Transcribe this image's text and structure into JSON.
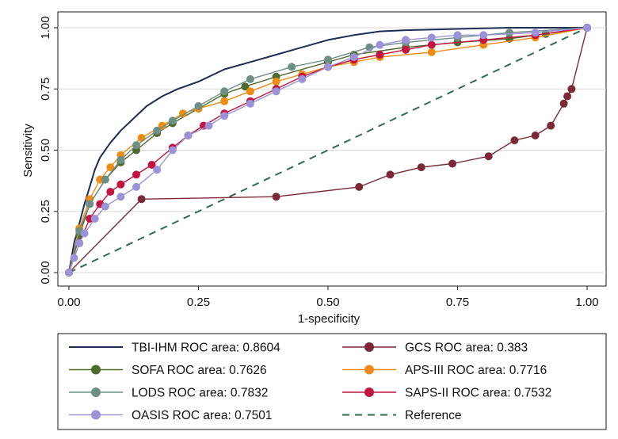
{
  "chart_data": {
    "type": "line",
    "title": "",
    "xlabel": "1-specificity",
    "ylabel": "Sensitivity",
    "xlim": [
      0,
      1
    ],
    "ylim": [
      0,
      1
    ],
    "xticks": [
      "0.00",
      "0.25",
      "0.50",
      "0.75",
      "1.00"
    ],
    "yticks": [
      "0.00",
      "0.25",
      "0.50",
      "0.75",
      "1.00"
    ],
    "grid": "horizontal",
    "legend_position": "bottom",
    "series": [
      {
        "name": "TBI-IHM ROC area: 0.8604",
        "color": "#1c2e55",
        "markers": false,
        "dash": "",
        "points": [
          [
            0,
            0
          ],
          [
            0.01,
            0.12
          ],
          [
            0.02,
            0.2
          ],
          [
            0.03,
            0.28
          ],
          [
            0.04,
            0.35
          ],
          [
            0.05,
            0.42
          ],
          [
            0.06,
            0.47
          ],
          [
            0.08,
            0.53
          ],
          [
            0.1,
            0.58
          ],
          [
            0.12,
            0.62
          ],
          [
            0.15,
            0.68
          ],
          [
            0.18,
            0.72
          ],
          [
            0.21,
            0.75
          ],
          [
            0.25,
            0.78
          ],
          [
            0.3,
            0.83
          ],
          [
            0.35,
            0.86
          ],
          [
            0.4,
            0.89
          ],
          [
            0.45,
            0.92
          ],
          [
            0.5,
            0.95
          ],
          [
            0.55,
            0.97
          ],
          [
            0.6,
            0.985
          ],
          [
            0.65,
            0.99
          ],
          [
            0.75,
            0.995
          ],
          [
            0.85,
            1.0
          ],
          [
            1,
            1
          ]
        ]
      },
      {
        "name": "GCS ROC area: 0.383",
        "color": "#7b2934",
        "markers": true,
        "dash": "",
        "points": [
          [
            0,
            0
          ],
          [
            0.14,
            0.3
          ],
          [
            0.4,
            0.31
          ],
          [
            0.56,
            0.35
          ],
          [
            0.62,
            0.4
          ],
          [
            0.68,
            0.43
          ],
          [
            0.74,
            0.445
          ],
          [
            0.81,
            0.475
          ],
          [
            0.86,
            0.54
          ],
          [
            0.9,
            0.56
          ],
          [
            0.93,
            0.6
          ],
          [
            0.955,
            0.69
          ],
          [
            0.962,
            0.72
          ],
          [
            0.97,
            0.75
          ],
          [
            1,
            1
          ]
        ]
      },
      {
        "name": "SOFA ROC area: 0.7626",
        "color": "#4e6b2c",
        "markers": true,
        "dash": "",
        "points": [
          [
            0,
            0
          ],
          [
            0.02,
            0.15
          ],
          [
            0.04,
            0.28
          ],
          [
            0.07,
            0.38
          ],
          [
            0.1,
            0.45
          ],
          [
            0.13,
            0.5
          ],
          [
            0.17,
            0.57
          ],
          [
            0.2,
            0.61
          ],
          [
            0.25,
            0.67
          ],
          [
            0.3,
            0.73
          ],
          [
            0.34,
            0.76
          ],
          [
            0.4,
            0.8
          ],
          [
            0.5,
            0.86
          ],
          [
            0.55,
            0.89
          ],
          [
            0.65,
            0.92
          ],
          [
            0.75,
            0.94
          ],
          [
            0.85,
            0.955
          ],
          [
            0.92,
            0.975
          ],
          [
            1,
            1
          ]
        ]
      },
      {
        "name": "APS-III ROC area: 0.7716",
        "color": "#ef8c16",
        "markers": true,
        "dash": "",
        "points": [
          [
            0,
            0
          ],
          [
            0.02,
            0.18
          ],
          [
            0.04,
            0.3
          ],
          [
            0.06,
            0.38
          ],
          [
            0.08,
            0.43
          ],
          [
            0.1,
            0.48
          ],
          [
            0.14,
            0.55
          ],
          [
            0.18,
            0.6
          ],
          [
            0.22,
            0.65
          ],
          [
            0.25,
            0.67
          ],
          [
            0.3,
            0.7
          ],
          [
            0.35,
            0.74
          ],
          [
            0.4,
            0.78
          ],
          [
            0.45,
            0.81
          ],
          [
            0.5,
            0.84
          ],
          [
            0.55,
            0.86
          ],
          [
            0.6,
            0.88
          ],
          [
            0.7,
            0.9
          ],
          [
            0.8,
            0.93
          ],
          [
            0.9,
            0.96
          ],
          [
            1,
            1
          ]
        ]
      },
      {
        "name": "LODS ROC area: 0.7832",
        "color": "#6e8f86",
        "markers": true,
        "dash": "",
        "points": [
          [
            0,
            0
          ],
          [
            0.02,
            0.17
          ],
          [
            0.04,
            0.28
          ],
          [
            0.07,
            0.38
          ],
          [
            0.1,
            0.46
          ],
          [
            0.13,
            0.52
          ],
          [
            0.17,
            0.58
          ],
          [
            0.2,
            0.62
          ],
          [
            0.25,
            0.68
          ],
          [
            0.3,
            0.74
          ],
          [
            0.35,
            0.79
          ],
          [
            0.43,
            0.84
          ],
          [
            0.5,
            0.87
          ],
          [
            0.58,
            0.92
          ],
          [
            0.65,
            0.94
          ],
          [
            0.75,
            0.96
          ],
          [
            0.85,
            0.98
          ],
          [
            1,
            1
          ]
        ]
      },
      {
        "name": "SAPS-II ROC area: 0.7532",
        "color": "#c3133e",
        "markers": true,
        "dash": "",
        "points": [
          [
            0,
            0
          ],
          [
            0.02,
            0.12
          ],
          [
            0.04,
            0.22
          ],
          [
            0.06,
            0.28
          ],
          [
            0.08,
            0.33
          ],
          [
            0.1,
            0.36
          ],
          [
            0.13,
            0.4
          ],
          [
            0.16,
            0.44
          ],
          [
            0.2,
            0.51
          ],
          [
            0.23,
            0.56
          ],
          [
            0.26,
            0.6
          ],
          [
            0.3,
            0.65
          ],
          [
            0.35,
            0.7
          ],
          [
            0.4,
            0.75
          ],
          [
            0.45,
            0.8
          ],
          [
            0.5,
            0.84
          ],
          [
            0.55,
            0.87
          ],
          [
            0.6,
            0.89
          ],
          [
            0.65,
            0.91
          ],
          [
            0.7,
            0.93
          ],
          [
            0.8,
            0.95
          ],
          [
            0.9,
            0.97
          ],
          [
            1,
            1
          ]
        ]
      },
      {
        "name": "OASIS ROC area: 0.7501",
        "color": "#9b93d8",
        "markers": true,
        "dash": "",
        "points": [
          [
            0,
            0
          ],
          [
            0.01,
            0.06
          ],
          [
            0.02,
            0.12
          ],
          [
            0.03,
            0.16
          ],
          [
            0.05,
            0.22
          ],
          [
            0.07,
            0.27
          ],
          [
            0.1,
            0.31
          ],
          [
            0.13,
            0.35
          ],
          [
            0.17,
            0.42
          ],
          [
            0.2,
            0.5
          ],
          [
            0.23,
            0.56
          ],
          [
            0.27,
            0.6
          ],
          [
            0.3,
            0.64
          ],
          [
            0.35,
            0.69
          ],
          [
            0.4,
            0.74
          ],
          [
            0.45,
            0.79
          ],
          [
            0.5,
            0.84
          ],
          [
            0.55,
            0.88
          ],
          [
            0.6,
            0.93
          ],
          [
            0.65,
            0.95
          ],
          [
            0.7,
            0.96
          ],
          [
            0.75,
            0.97
          ],
          [
            0.8,
            0.97
          ],
          [
            0.9,
            0.98
          ],
          [
            1,
            1
          ]
        ]
      },
      {
        "name": "Reference",
        "color": "#2e6e4e",
        "markers": false,
        "dash": "9,7",
        "points": [
          [
            0,
            0
          ],
          [
            1,
            1
          ]
        ]
      }
    ]
  }
}
